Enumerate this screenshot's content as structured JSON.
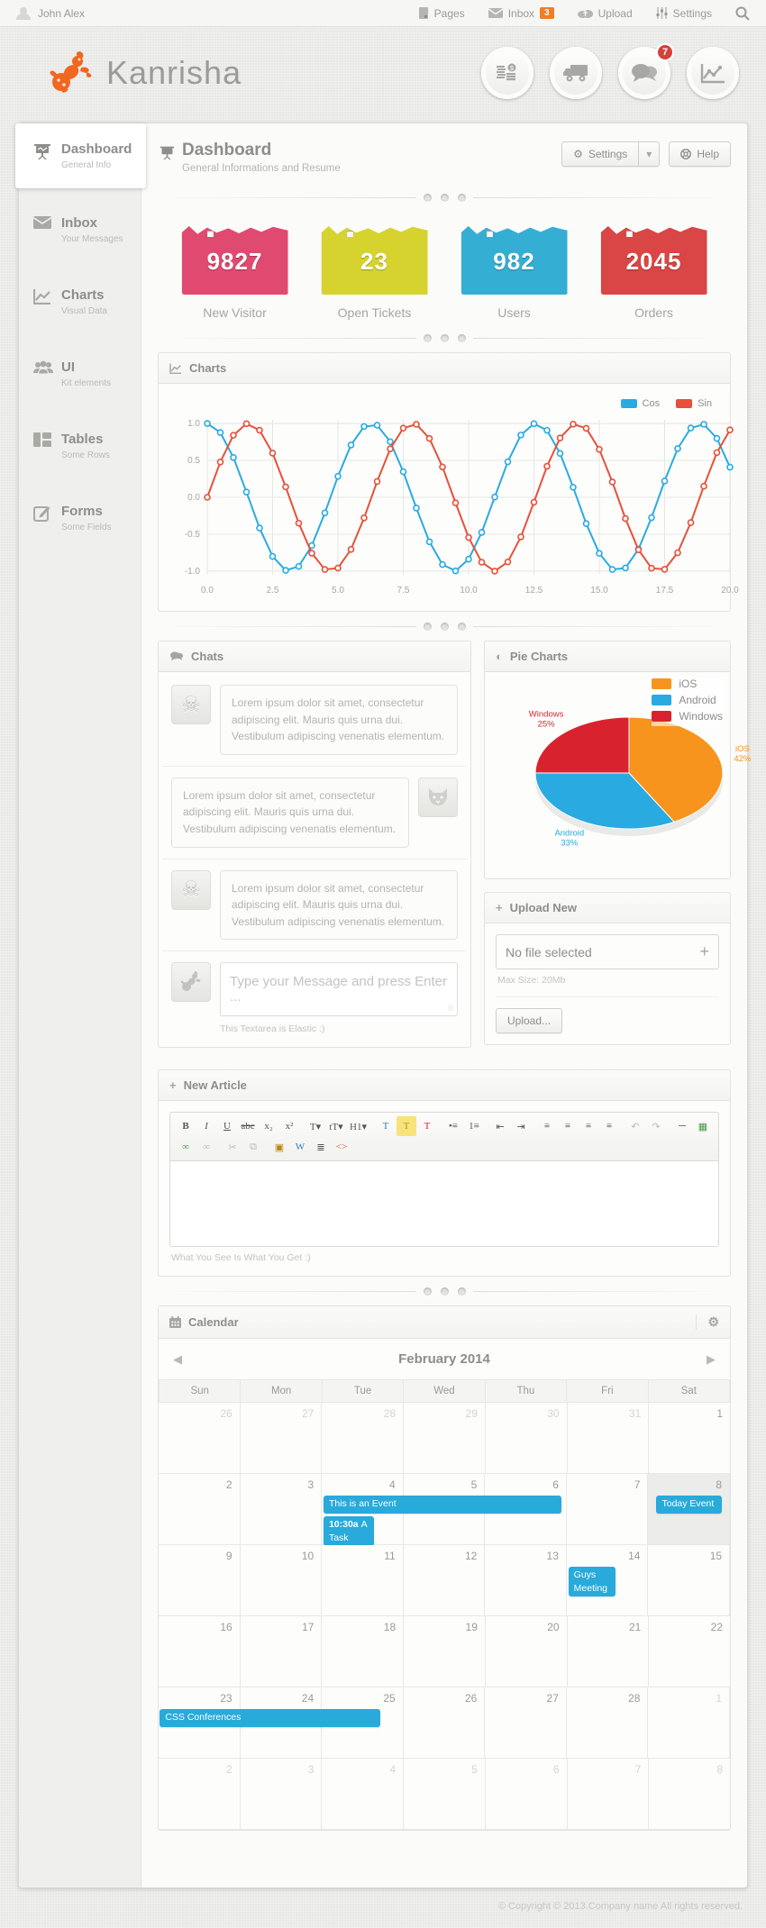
{
  "topbar": {
    "user": "John Alex",
    "items": [
      {
        "label": "Pages",
        "icon": "pages-icon"
      },
      {
        "label": "Inbox",
        "icon": "inbox-icon",
        "badge": "3"
      },
      {
        "label": "Upload",
        "icon": "upload-icon"
      },
      {
        "label": "Settings",
        "icon": "settings-icon"
      }
    ]
  },
  "brand": {
    "name": "Kanrisha",
    "quick_actions": [
      {
        "name": "finance",
        "icon": "coins-icon"
      },
      {
        "name": "shipping",
        "icon": "truck-icon"
      },
      {
        "name": "messages",
        "icon": "chat-bubbles-icon",
        "badge": "7"
      },
      {
        "name": "analytics",
        "icon": "line-chart-icon"
      }
    ]
  },
  "sidebar": {
    "items": [
      {
        "title": "Dashboard",
        "subtitle": "General Info",
        "active": true
      },
      {
        "title": "Inbox",
        "subtitle": "Your Messages"
      },
      {
        "title": "Charts",
        "subtitle": "Visual Data"
      },
      {
        "title": "UI",
        "subtitle": "Kit elements"
      },
      {
        "title": "Tables",
        "subtitle": "Some Rows"
      },
      {
        "title": "Forms",
        "subtitle": "Some Fields"
      }
    ]
  },
  "page": {
    "title": "Dashboard",
    "subtitle": "General Informations and Resume",
    "settings_label": "Settings",
    "help_label": "Help"
  },
  "stats": [
    {
      "value": "9827",
      "label": "New Visitor",
      "color": "#e04a70",
      "name": "new-visitor"
    },
    {
      "value": "23",
      "label": "Open Tickets",
      "color": "#d6d32f",
      "name": "open-tickets"
    },
    {
      "value": "982",
      "label": "Users",
      "color": "#35aed4",
      "name": "users"
    },
    {
      "value": "2045",
      "label": "Orders",
      "color": "#da4545",
      "name": "orders"
    }
  ],
  "chart_data": [
    {
      "type": "line",
      "title": "Charts",
      "xlabel": "",
      "ylabel": "",
      "xlim": [
        0,
        20
      ],
      "ylim": [
        -1.05,
        1.05
      ],
      "xticks": [
        0,
        2.5,
        5,
        7.5,
        10,
        12.5,
        15,
        17.5,
        20
      ],
      "yticks": [
        1.0,
        0.5,
        0.0,
        -0.5,
        -1.0
      ],
      "grid": true,
      "legend_position": "top-right",
      "x": [
        0,
        0.5,
        1,
        1.5,
        2,
        2.5,
        3,
        3.5,
        4,
        4.5,
        5,
        5.5,
        6,
        6.5,
        7,
        7.5,
        8,
        8.5,
        9,
        9.5,
        10,
        10.5,
        11,
        11.5,
        12,
        12.5,
        13,
        13.5,
        14,
        14.5,
        15,
        15.5,
        16,
        16.5,
        17,
        17.5,
        18,
        18.5,
        19,
        19.5,
        20
      ],
      "series": [
        {
          "name": "Cos",
          "color": "#29abe2",
          "values": [
            1,
            0.878,
            0.54,
            0.071,
            -0.416,
            -0.801,
            -0.99,
            -0.936,
            -0.654,
            -0.211,
            0.284,
            0.709,
            0.96,
            0.977,
            0.754,
            0.347,
            -0.146,
            -0.602,
            -0.911,
            -0.997,
            -0.839,
            -0.476,
            0.004,
            0.482,
            0.844,
            0.998,
            0.908,
            0.595,
            0.137,
            -0.356,
            -0.76,
            -0.978,
            -0.958,
            -0.703,
            -0.275,
            0.221,
            0.66,
            0.939,
            0.989,
            0.798,
            0.408
          ]
        },
        {
          "name": "Sin",
          "color": "#e8503a",
          "values": [
            0,
            0.479,
            0.841,
            0.997,
            0.909,
            0.599,
            0.141,
            -0.351,
            -0.757,
            -0.978,
            -0.959,
            -0.706,
            -0.279,
            0.215,
            0.657,
            0.938,
            0.989,
            0.798,
            0.412,
            -0.075,
            -0.544,
            -0.88,
            -1,
            -0.876,
            -0.537,
            -0.066,
            0.42,
            0.804,
            0.991,
            0.935,
            0.65,
            0.208,
            -0.288,
            -0.711,
            -0.961,
            -0.976,
            -0.751,
            -0.343,
            0.15,
            0.606,
            0.913
          ]
        }
      ]
    },
    {
      "type": "pie",
      "title": "Pie Charts",
      "labels": [
        "iOS",
        "Android",
        "Windows"
      ],
      "values": [
        42,
        33,
        25
      ],
      "colors": [
        "#f7941e",
        "#29aae1",
        "#d8232f"
      ],
      "legend_position": "top-right",
      "start_angle_deg": 0,
      "direction": "clockwise"
    }
  ],
  "panels": {
    "charts_title": "Charts",
    "chats_title": "Chats",
    "pie_title": "Pie Charts",
    "upload_title": "Upload New",
    "article_title": "New Article",
    "calendar_title": "Calendar"
  },
  "chats": {
    "messages": [
      {
        "side": "left",
        "avatar": "skull-avatar",
        "text": "Lorem ipsum dolor sit amet, consectetur adipiscing elit. Mauris quis urna dui. Vestibulum adipiscing venenatis elementum."
      },
      {
        "side": "right",
        "avatar": "fox-avatar",
        "text": "Lorem ipsum dolor sit amet, consectetur adipiscing elit. Mauris quis urna dui. Vestibulum adipiscing venenatis elementum."
      },
      {
        "side": "left",
        "avatar": "skull-avatar",
        "text": "Lorem ipsum dolor sit amet, consectetur adipiscing elit. Mauris quis urna dui. Vestibulum adipiscing venenatis elementum."
      }
    ],
    "input_placeholder": "Type your Message and press Enter ...",
    "note": "This Textarea is Elastic :)"
  },
  "upload": {
    "file_label": "No file selected",
    "max_size": "Max Size: 20Mb",
    "button_label": "Upload..."
  },
  "article": {
    "note": "What You See Is What You Get :)",
    "toolbar": [
      {
        "g": "B",
        "n": "bold",
        "bold": true
      },
      {
        "g": "I",
        "n": "italic",
        "italic": true
      },
      {
        "g": "U",
        "n": "underline",
        "u": true
      },
      {
        "g": "abc",
        "n": "strikethrough",
        "s": true
      },
      {
        "g": "x₂",
        "n": "subscript"
      },
      {
        "g": "x²",
        "n": "superscript"
      },
      {
        "g": "T▾",
        "n": "font-family"
      },
      {
        "g": "tT▾",
        "n": "font-size"
      },
      {
        "g": "H1▾",
        "n": "heading-format"
      },
      {
        "g": "T",
        "n": "font-color",
        "c": "#3a78c2"
      },
      {
        "g": "T",
        "n": "highlight-color",
        "c": "#b89a00",
        "bg": "#f6e37c"
      },
      {
        "g": "T",
        "n": "remove-format",
        "c": "#d8232f"
      },
      {
        "g": "•≡",
        "n": "unordered-list"
      },
      {
        "g": "1≡",
        "n": "ordered-list"
      },
      {
        "g": "⇤",
        "n": "outdent"
      },
      {
        "g": "⇥",
        "n": "indent"
      },
      {
        "g": "≡",
        "n": "align-left"
      },
      {
        "g": "≡",
        "n": "align-center"
      },
      {
        "g": "≡",
        "n": "align-right"
      },
      {
        "g": "≡",
        "n": "align-justify"
      },
      {
        "g": "↶",
        "n": "undo",
        "mut": true
      },
      {
        "g": "↷",
        "n": "redo",
        "mut": true
      },
      {
        "g": "─",
        "n": "horizontal-rule"
      },
      {
        "g": "▦",
        "n": "insert-image",
        "c": "#4a9a4a"
      },
      {
        "g": "∞",
        "n": "insert-link",
        "c": "#4a9a4a"
      },
      {
        "g": "∞",
        "n": "unlink",
        "mut": true
      },
      {
        "g": "✂",
        "n": "cut",
        "mut": true
      },
      {
        "g": "⧉",
        "n": "copy",
        "mut": true
      },
      {
        "g": "▣",
        "n": "paste",
        "c": "#b8860b"
      },
      {
        "g": "W",
        "n": "paste-from-word",
        "c": "#3a78c2"
      },
      {
        "g": "≣",
        "n": "print"
      },
      {
        "g": "<>",
        "n": "source-code",
        "c": "#c2563a"
      }
    ]
  },
  "calendar": {
    "month_label": "February 2014",
    "prev": "◀",
    "next": "▶",
    "day_names": [
      "Sun",
      "Mon",
      "Tue",
      "Wed",
      "Thu",
      "Fri",
      "Sat"
    ],
    "weeks": [
      {
        "days": [
          {
            "d": 26,
            "m": 1
          },
          {
            "d": 27,
            "m": 1
          },
          {
            "d": 28,
            "m": 1
          },
          {
            "d": 29,
            "m": 1
          },
          {
            "d": 30,
            "m": 1
          },
          {
            "d": 31,
            "m": 1
          },
          {
            "d": 1
          }
        ]
      },
      {
        "days": [
          {
            "d": 2
          },
          {
            "d": 3
          },
          {
            "d": 4
          },
          {
            "d": 5
          },
          {
            "d": 6
          },
          {
            "d": 7
          },
          {
            "d": 8,
            "t": 1
          }
        ]
      },
      {
        "days": [
          {
            "d": 9
          },
          {
            "d": 10
          },
          {
            "d": 11
          },
          {
            "d": 12
          },
          {
            "d": 13
          },
          {
            "d": 14
          },
          {
            "d": 15
          }
        ]
      },
      {
        "days": [
          {
            "d": 16
          },
          {
            "d": 17
          },
          {
            "d": 18
          },
          {
            "d": 19
          },
          {
            "d": 20
          },
          {
            "d": 21
          },
          {
            "d": 22
          }
        ]
      },
      {
        "days": [
          {
            "d": 23
          },
          {
            "d": 24
          },
          {
            "d": 25
          },
          {
            "d": 26
          },
          {
            "d": 27
          },
          {
            "d": 28
          },
          {
            "d": 1,
            "m": 1
          }
        ]
      },
      {
        "days": [
          {
            "d": 2,
            "m": 1
          },
          {
            "d": 3,
            "m": 1
          },
          {
            "d": 4,
            "m": 1
          },
          {
            "d": 5,
            "m": 1
          },
          {
            "d": 6,
            "m": 1
          },
          {
            "d": 7,
            "m": 1
          },
          {
            "d": 8,
            "m": 1
          }
        ]
      }
    ],
    "events": [
      {
        "week": 1,
        "col": 2,
        "span": 3,
        "label": "This is an Event",
        "row": 0
      },
      {
        "week": 1,
        "col": 2,
        "span": 1,
        "time": "10:30a",
        "label": "A Task",
        "row": 1,
        "wfrac": 0.62,
        "wrap": true
      },
      {
        "week": 1,
        "col": 6,
        "span": 1,
        "label": "Today Event",
        "row": 0,
        "wfrac": 0.8,
        "lfrac": 0.1
      },
      {
        "week": 2,
        "col": 5,
        "span": 1,
        "label": "Guys Meeting",
        "row": 0,
        "wfrac": 0.58,
        "wrap": true
      },
      {
        "week": 4,
        "col": 0,
        "span": 3,
        "label": "CSS Conferences",
        "row": 0,
        "wfrac": 0.9,
        "lfrac": 0.015
      }
    ]
  },
  "footer": {
    "copyright": "© Copyright © 2013.Company name All rights reserved."
  },
  "colors": {
    "accent_blue": "#29abe2",
    "accent_red": "#e8503a",
    "event_blue": "#28aadb",
    "brand_orange": "#f1671f"
  }
}
